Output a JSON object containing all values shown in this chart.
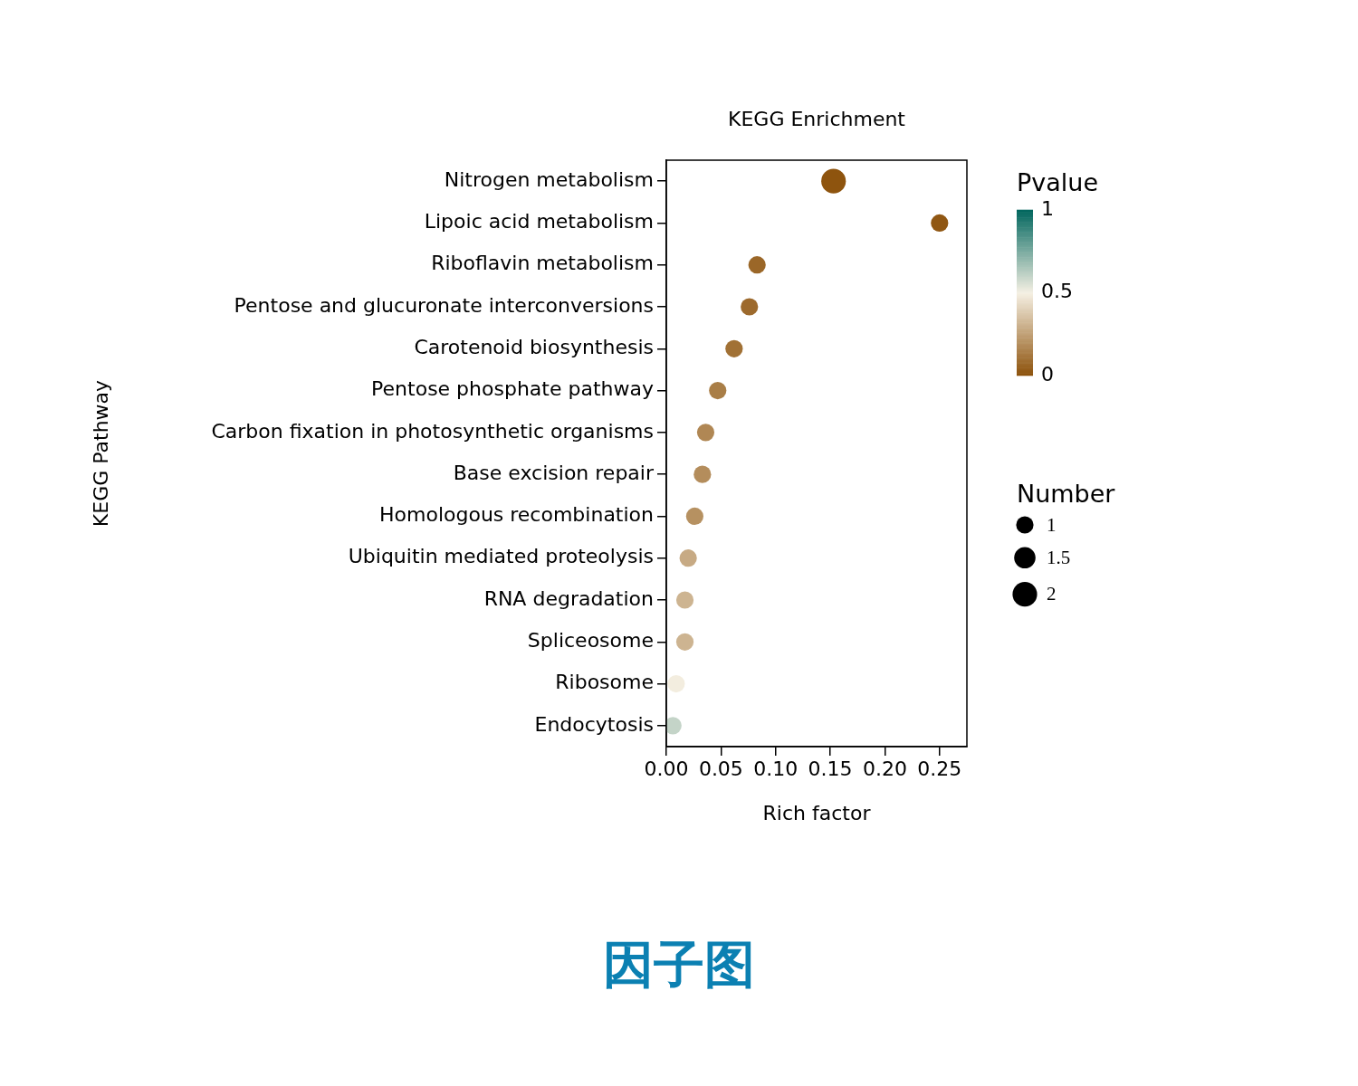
{
  "chart_data": {
    "type": "bubble",
    "orientation": "horizontal",
    "title": "KEGG Enrichment",
    "xlabel": "Rich factor",
    "ylabel": "KEGG Pathway",
    "clabel": "Pvalue",
    "legend_title": "Number",
    "categories": [
      "Nitrogen metabolism",
      "Lipoic acid metabolism",
      "Riboflavin metabolism",
      "Pentose and glucuronate interconversions",
      "Carotenoid biosynthesis",
      "Pentose phosphate pathway",
      "Carbon fixation in photosynthetic organisms",
      "Base excision repair",
      "Homologous recombination",
      "Ubiquitin mediated proteolysis",
      "RNA degradation",
      "Spliceosome",
      "Ribosome",
      "Endocytosis"
    ],
    "values": [
      0.153,
      0.25,
      0.083,
      0.076,
      0.062,
      0.047,
      0.036,
      0.033,
      0.026,
      0.02,
      0.017,
      0.017,
      0.009,
      0.006
    ],
    "sizes": [
      2,
      1,
      1,
      1,
      1,
      1,
      1,
      1,
      1,
      1,
      1,
      1,
      1,
      1
    ],
    "size_legend": [
      1,
      1.5,
      2
    ],
    "cvalues": [
      0.01,
      0.02,
      0.07,
      0.08,
      0.1,
      0.14,
      0.17,
      0.19,
      0.2,
      0.28,
      0.31,
      0.31,
      0.49,
      0.6
    ],
    "clim": [
      0,
      1
    ],
    "cticks": [
      0,
      0.5,
      1
    ],
    "xlim": [
      0,
      0.275
    ],
    "xticks": [
      {
        "value": 0,
        "label": "0.00"
      },
      0.05,
      {
        "value": 0.1,
        "label": "0.10"
      },
      0.15,
      {
        "value": 0.2,
        "label": "0.20"
      },
      0.25
    ],
    "marker": "circle",
    "annotations": [
      "因子图"
    ]
  }
}
